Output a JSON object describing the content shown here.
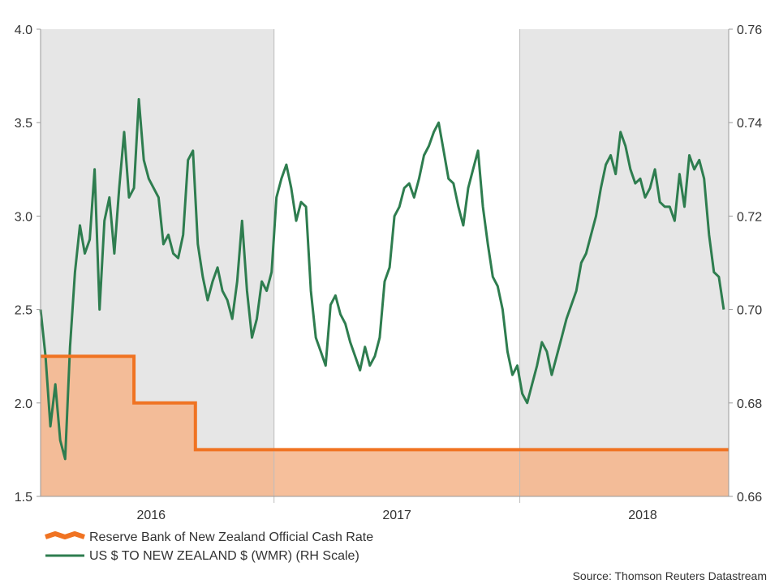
{
  "chart_data": {
    "type": "line",
    "title": "",
    "x_domain": [
      2015.55,
      2018.35
    ],
    "x_ticks": [
      {
        "label": "2016",
        "x": 2016.0
      },
      {
        "label": "2017",
        "x": 2017.0
      },
      {
        "label": "2018",
        "x": 2018.0
      }
    ],
    "year_boundaries": [
      2016.5,
      2017.5
    ],
    "shaded_bands": [
      [
        2015.55,
        2016.5
      ],
      [
        2017.5,
        2018.35
      ]
    ],
    "left_axis": {
      "min": 1.5,
      "max": 4.0,
      "ticks": [
        "1.5",
        "2.0",
        "2.5",
        "3.0",
        "3.5",
        "4.0"
      ]
    },
    "right_axis": {
      "min": 0.66,
      "max": 0.76,
      "ticks": [
        "0.66",
        "0.68",
        "0.70",
        "0.72",
        "0.74",
        "0.76"
      ]
    },
    "series": [
      {
        "name": "Reserve Bank of New Zealand Official Cash Rate",
        "axis": "left",
        "kind": "step-area",
        "color": "#f07322",
        "fill": "#f5b48a",
        "steps": [
          {
            "x": 2015.55,
            "y": 2.25
          },
          {
            "x": 2015.93,
            "y": 2.0
          },
          {
            "x": 2016.18,
            "y": 1.75
          }
        ]
      },
      {
        "name": "US $ TO NEW ZEALAND $ (WMR) (RH Scale)",
        "axis": "right",
        "kind": "line",
        "color": "#2e7d4f",
        "x": [
          2015.55,
          2015.57,
          2015.59,
          2015.61,
          2015.63,
          2015.65,
          2015.67,
          2015.69,
          2015.71,
          2015.73,
          2015.75,
          2015.77,
          2015.79,
          2015.81,
          2015.83,
          2015.85,
          2015.87,
          2015.89,
          2015.91,
          2015.93,
          2015.95,
          2015.97,
          2015.99,
          2016.01,
          2016.03,
          2016.05,
          2016.07,
          2016.09,
          2016.11,
          2016.13,
          2016.15,
          2016.17,
          2016.19,
          2016.21,
          2016.23,
          2016.25,
          2016.27,
          2016.29,
          2016.31,
          2016.33,
          2016.35,
          2016.37,
          2016.39,
          2016.41,
          2016.43,
          2016.45,
          2016.47,
          2016.49,
          2016.51,
          2016.53,
          2016.55,
          2016.57,
          2016.59,
          2016.61,
          2016.63,
          2016.65,
          2016.67,
          2016.69,
          2016.71,
          2016.73,
          2016.75,
          2016.77,
          2016.79,
          2016.81,
          2016.83,
          2016.85,
          2016.87,
          2016.89,
          2016.91,
          2016.93,
          2016.95,
          2016.97,
          2016.99,
          2017.01,
          2017.03,
          2017.05,
          2017.07,
          2017.09,
          2017.11,
          2017.13,
          2017.15,
          2017.17,
          2017.19,
          2017.21,
          2017.23,
          2017.25,
          2017.27,
          2017.29,
          2017.31,
          2017.33,
          2017.35,
          2017.37,
          2017.39,
          2017.41,
          2017.43,
          2017.45,
          2017.47,
          2017.49,
          2017.51,
          2017.53,
          2017.55,
          2017.57,
          2017.59,
          2017.61,
          2017.63,
          2017.65,
          2017.67,
          2017.69,
          2017.71,
          2017.73,
          2017.75,
          2017.77,
          2017.79,
          2017.81,
          2017.83,
          2017.85,
          2017.87,
          2017.89,
          2017.91,
          2017.93,
          2017.95,
          2017.97,
          2017.99,
          2018.01,
          2018.03,
          2018.05,
          2018.07,
          2018.09,
          2018.11,
          2018.13,
          2018.15,
          2018.17,
          2018.19,
          2018.21,
          2018.23,
          2018.25,
          2018.27,
          2018.29,
          2018.31,
          2018.33
        ],
        "values": [
          0.7,
          0.69,
          0.675,
          0.684,
          0.672,
          0.668,
          0.692,
          0.708,
          0.718,
          0.712,
          0.715,
          0.73,
          0.7,
          0.719,
          0.724,
          0.712,
          0.726,
          0.738,
          0.724,
          0.726,
          0.745,
          0.732,
          0.728,
          0.726,
          0.724,
          0.714,
          0.716,
          0.712,
          0.711,
          0.716,
          0.732,
          0.734,
          0.714,
          0.707,
          0.702,
          0.706,
          0.709,
          0.704,
          0.702,
          0.698,
          0.706,
          0.719,
          0.704,
          0.694,
          0.698,
          0.706,
          0.704,
          0.708,
          0.724,
          0.728,
          0.731,
          0.726,
          0.719,
          0.723,
          0.722,
          0.704,
          0.694,
          0.691,
          0.688,
          0.701,
          0.703,
          0.699,
          0.697,
          0.693,
          0.69,
          0.687,
          0.692,
          0.688,
          0.69,
          0.694,
          0.706,
          0.709,
          0.72,
          0.722,
          0.726,
          0.727,
          0.724,
          0.728,
          0.733,
          0.735,
          0.738,
          0.74,
          0.734,
          0.728,
          0.727,
          0.722,
          0.718,
          0.726,
          0.73,
          0.734,
          0.722,
          0.714,
          0.707,
          0.705,
          0.7,
          0.691,
          0.686,
          0.688,
          0.682,
          0.68,
          0.684,
          0.688,
          0.693,
          0.691,
          0.686,
          0.69,
          0.694,
          0.698,
          0.701,
          0.704,
          0.71,
          0.712,
          0.716,
          0.72,
          0.726,
          0.731,
          0.733,
          0.729,
          0.738,
          0.735,
          0.73,
          0.727,
          0.728,
          0.724,
          0.726,
          0.73,
          0.723,
          0.722,
          0.722,
          0.719,
          0.729,
          0.722,
          0.733,
          0.73,
          0.732,
          0.728,
          0.716,
          0.708,
          0.707,
          0.7
        ]
      }
    ],
    "legend": [
      {
        "label": "Reserve Bank of New Zealand Official Cash Rate",
        "color": "#f07322"
      },
      {
        "label": "US $ TO NEW ZEALAND $ (WMR) (RH Scale)",
        "color": "#2e7d4f"
      }
    ],
    "legend_position": "bottom-left",
    "source": "Source: Thomson Reuters Datastream"
  }
}
